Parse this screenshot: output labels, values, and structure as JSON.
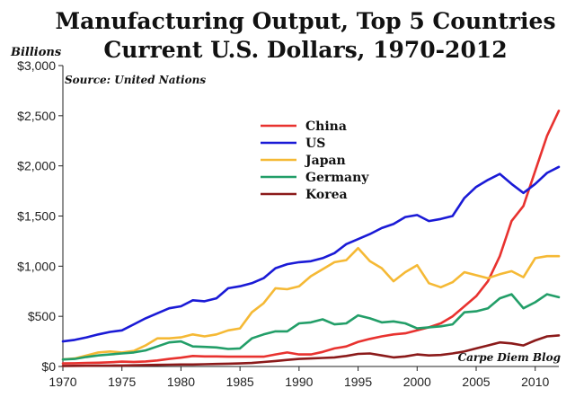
{
  "chart_data": {
    "type": "line",
    "title": "Manufacturing Output, Top 5 Countries",
    "subtitle": "Current U.S. Dollars, 1970-2012",
    "ylabel": "Billions",
    "source": "Source: United Nations",
    "credit": "Carpe Diem Blog",
    "ylim": [
      0,
      3000
    ],
    "xlim": [
      1970,
      2012
    ],
    "y_ticks": [
      0,
      500,
      1000,
      1500,
      2000,
      2500,
      3000
    ],
    "y_tick_labels": [
      "$0",
      "$500",
      "$1,000",
      "$1,500",
      "$2,000",
      "$2,500",
      "$3,000"
    ],
    "x_ticks": [
      1970,
      1975,
      1980,
      1985,
      1990,
      1995,
      2000,
      2005,
      2010
    ],
    "x_tick_labels": [
      "1970",
      "1975",
      "1980",
      "1985",
      "1990",
      "1995",
      "2000",
      "2005",
      "2010"
    ],
    "legend_position": "upper-center",
    "grid": false,
    "x": [
      1970,
      1971,
      1972,
      1973,
      1974,
      1975,
      1976,
      1977,
      1978,
      1979,
      1980,
      1981,
      1982,
      1983,
      1984,
      1985,
      1986,
      1987,
      1988,
      1989,
      1990,
      1991,
      1992,
      1993,
      1994,
      1995,
      1996,
      1997,
      1998,
      1999,
      2000,
      2001,
      2002,
      2003,
      2004,
      2005,
      2006,
      2007,
      2008,
      2009,
      2010,
      2011,
      2012
    ],
    "series": [
      {
        "name": "China",
        "color": "#e8322f",
        "values": [
          30,
          32,
          35,
          38,
          42,
          48,
          46,
          50,
          60,
          75,
          88,
          105,
          100,
          100,
          98,
          98,
          98,
          98,
          120,
          140,
          120,
          120,
          145,
          180,
          200,
          245,
          275,
          300,
          320,
          330,
          360,
          390,
          430,
          500,
          600,
          700,
          850,
          1100,
          1450,
          1600,
          1950,
          2300,
          2550
        ]
      },
      {
        "name": "US",
        "color": "#1a1ad6",
        "values": [
          250,
          265,
          290,
          320,
          345,
          360,
          420,
          480,
          530,
          580,
          600,
          660,
          650,
          680,
          780,
          800,
          830,
          880,
          980,
          1020,
          1040,
          1050,
          1080,
          1130,
          1220,
          1270,
          1320,
          1380,
          1420,
          1490,
          1510,
          1450,
          1470,
          1500,
          1680,
          1790,
          1860,
          1920,
          1820,
          1730,
          1820,
          1930,
          1990
        ]
      },
      {
        "name": "Japan",
        "color": "#f5b935",
        "values": [
          70,
          80,
          110,
          140,
          150,
          140,
          155,
          210,
          280,
          280,
          290,
          320,
          300,
          320,
          360,
          380,
          540,
          630,
          780,
          770,
          800,
          900,
          970,
          1040,
          1060,
          1180,
          1050,
          980,
          850,
          940,
          1010,
          830,
          790,
          840,
          940,
          910,
          880,
          920,
          950,
          890,
          1080,
          1100,
          1100
        ]
      },
      {
        "name": "Germany",
        "color": "#229e68",
        "values": [
          70,
          75,
          95,
          110,
          120,
          130,
          140,
          160,
          200,
          240,
          250,
          200,
          195,
          190,
          175,
          180,
          280,
          320,
          350,
          350,
          430,
          440,
          470,
          420,
          430,
          510,
          480,
          440,
          450,
          430,
          380,
          390,
          400,
          420,
          540,
          550,
          580,
          680,
          720,
          580,
          640,
          720,
          690
        ]
      },
      {
        "name": "Korea",
        "color": "#8b1a1a",
        "values": [
          5,
          6,
          7,
          8,
          9,
          10,
          12,
          14,
          16,
          18,
          20,
          20,
          22,
          25,
          28,
          30,
          35,
          45,
          55,
          65,
          75,
          80,
          85,
          90,
          105,
          125,
          130,
          110,
          90,
          100,
          120,
          110,
          115,
          130,
          150,
          180,
          210,
          240,
          230,
          210,
          260,
          300,
          310
        ]
      }
    ]
  }
}
